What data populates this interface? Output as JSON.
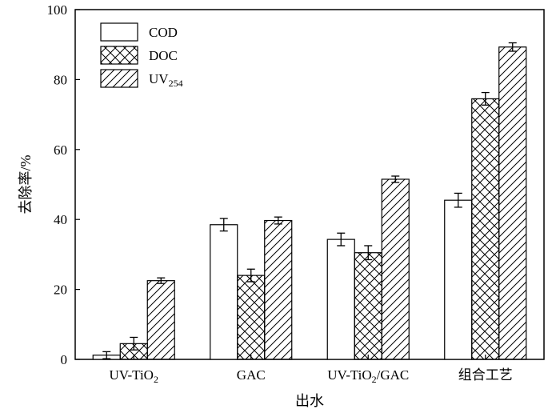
{
  "chart_data": {
    "type": "bar",
    "categories": [
      "UV-TiO2",
      "GAC",
      "UV-TiO2/GAC",
      "组合工艺"
    ],
    "category_labels": [
      {
        "main": "UV-TiO",
        "sub": "2",
        "tail": ""
      },
      {
        "main": "GAC",
        "sub": "",
        "tail": ""
      },
      {
        "main": "UV-TiO",
        "sub": "2",
        "tail": "/GAC"
      },
      {
        "main": "组合工艺",
        "sub": "",
        "tail": ""
      }
    ],
    "series": [
      {
        "name": "COD",
        "legend_main": "COD",
        "legend_sub": "",
        "pattern": "none",
        "values": [
          1.2,
          38.5,
          34.3,
          45.5
        ],
        "errors": [
          1.0,
          1.8,
          1.8,
          2.0
        ]
      },
      {
        "name": "DOC",
        "legend_main": "DOC",
        "legend_sub": "",
        "pattern": "crosshatch",
        "values": [
          4.5,
          24.0,
          30.5,
          74.5
        ],
        "errors": [
          1.8,
          1.8,
          2.0,
          1.8
        ]
      },
      {
        "name": "UV254",
        "legend_main": "UV",
        "legend_sub": "254",
        "pattern": "diagonal",
        "values": [
          22.5,
          39.7,
          51.5,
          89.3
        ],
        "errors": [
          0.8,
          1.0,
          0.9,
          1.2
        ]
      }
    ],
    "xlabel": "出水",
    "ylabel": "去除率/%",
    "ylim": [
      0,
      100
    ],
    "yticks": [
      0,
      20,
      40,
      60,
      80,
      100
    ],
    "grid": false,
    "legend_position": "top-left",
    "colors": {
      "bar_fill": "#ffffff",
      "stroke": "#000000"
    }
  }
}
